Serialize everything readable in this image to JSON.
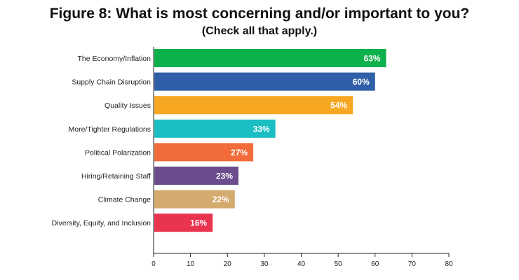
{
  "chart_data": {
    "type": "bar",
    "orientation": "horizontal",
    "title": "Figure 8: What is most concerning and/or important to you?",
    "subtitle": "(Check all that apply.)",
    "categories": [
      "The Economy/Inflation",
      "Supply Chain Disruption",
      "Quality Issues",
      "More/Tighter Regulations",
      "Political Polarization",
      "Hiring/Retaining Staff",
      "Climate Change",
      "Diversity, Equity, and Inclusion"
    ],
    "values": [
      63,
      60,
      54,
      33,
      27,
      23,
      22,
      16
    ],
    "value_labels": [
      "63%",
      "60%",
      "54%",
      "33%",
      "27%",
      "23%",
      "22%",
      "16%"
    ],
    "colors": [
      "#0db14b",
      "#2e5fa8",
      "#f7a823",
      "#1bbec3",
      "#f26b3a",
      "#6b4c8c",
      "#d4ab6e",
      "#e8344e"
    ],
    "xlim": [
      0,
      80
    ],
    "xticks": [
      0,
      10,
      20,
      30,
      40,
      50,
      60,
      70,
      80
    ],
    "xlabel": "",
    "ylabel": "",
    "grid": false
  }
}
